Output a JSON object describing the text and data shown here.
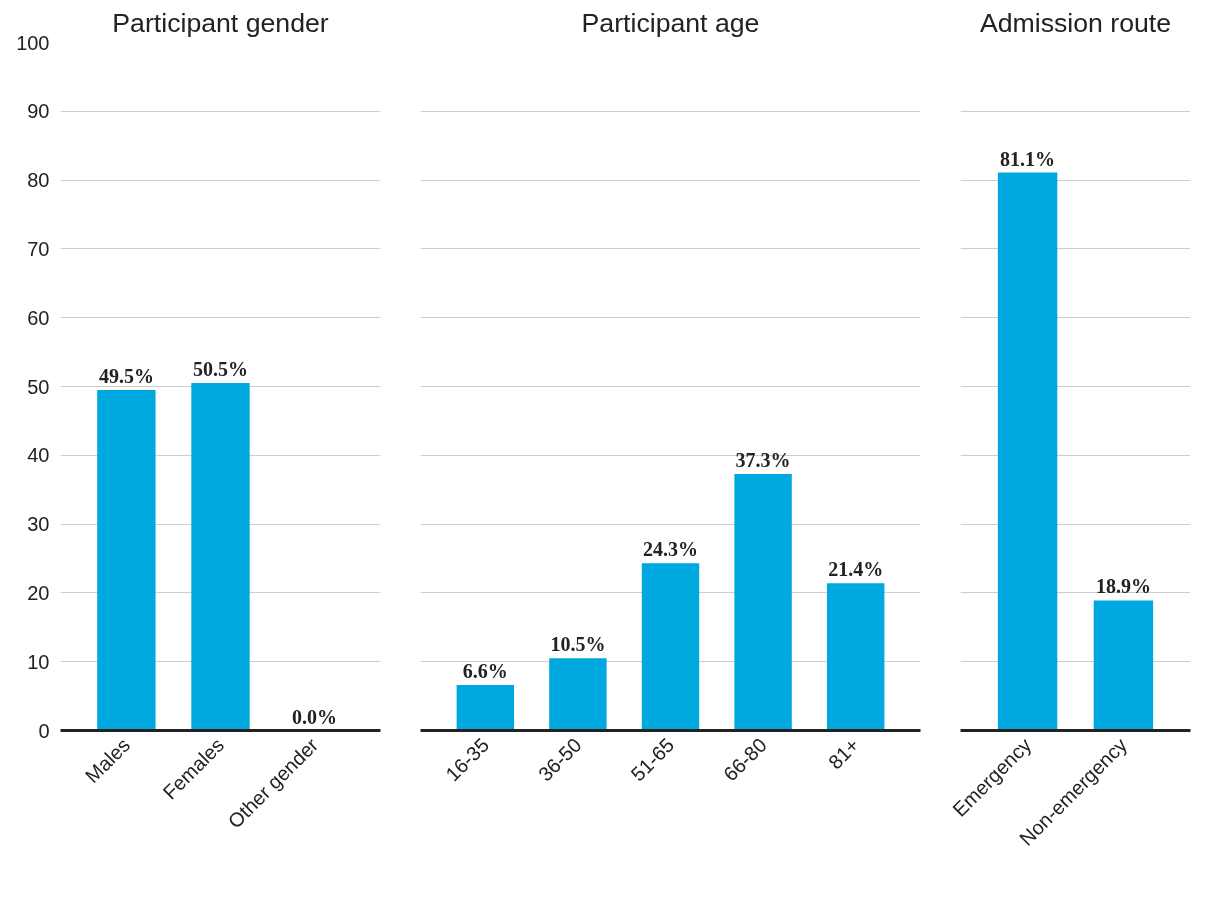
{
  "chart_data": [
    {
      "type": "bar",
      "title": "Participant gender",
      "categories": [
        "Males",
        "Females",
        "Other gender"
      ],
      "values": [
        49.5,
        50.5,
        0.0
      ],
      "color": "#00a8e0",
      "data_labels": true,
      "value_labels": [
        "49.5%",
        "50.5%",
        "0.0%"
      ],
      "ylim": [
        0,
        100
      ],
      "yticks": [
        0,
        10,
        20,
        30,
        40,
        50,
        60,
        70,
        80,
        90,
        100
      ],
      "grid": "y"
    },
    {
      "type": "bar",
      "title": "Participant age",
      "categories": [
        "16-35",
        "36-50",
        "51-65",
        "66-80",
        "81+"
      ],
      "values": [
        6.6,
        10.5,
        24.3,
        37.3,
        21.4
      ],
      "color": "#00a8e0",
      "data_labels": true,
      "value_labels": [
        "6.6%",
        "10.5%",
        "24.3%",
        "37.3%",
        "21.4%"
      ],
      "ylim": [
        0,
        100
      ],
      "yticks": [
        0,
        10,
        20,
        30,
        40,
        50,
        60,
        70,
        80,
        90,
        100
      ],
      "grid": "y",
      "tick_labels": "x"
    },
    {
      "type": "bar",
      "title": "Admission route",
      "categories": [
        "Emergency",
        "Non-emergency"
      ],
      "values": [
        81.1,
        18.9
      ],
      "color": "#00a8e0",
      "data_labels": true,
      "value_labels": [
        "81.1%",
        "18.9%"
      ],
      "ylim": [
        0,
        100
      ],
      "yticks": [
        0,
        10,
        20,
        30,
        40,
        50,
        60,
        70,
        80,
        90,
        100
      ],
      "grid": "y",
      "tick_labels": "x"
    }
  ]
}
